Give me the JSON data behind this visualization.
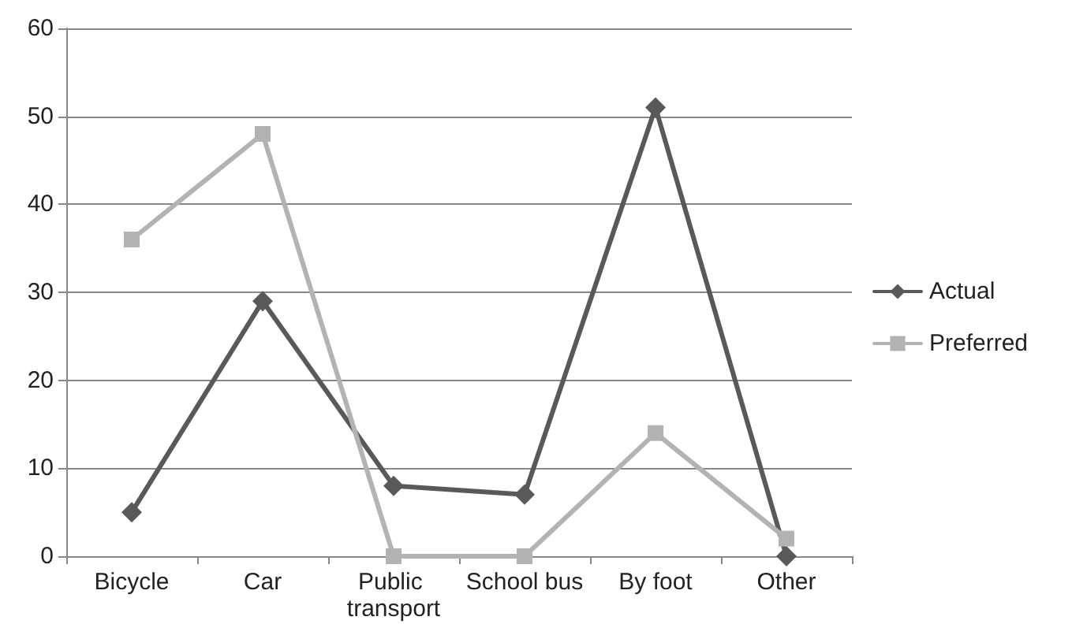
{
  "chart_data": {
    "type": "line",
    "categories": [
      "Bicycle",
      "Car",
      "Public transport",
      "School bus",
      "By foot",
      "Other"
    ],
    "series": [
      {
        "name": "Actual",
        "color": "#595959",
        "marker": "diamond",
        "values": [
          5,
          29,
          8,
          7,
          51,
          0
        ]
      },
      {
        "name": "Preferred",
        "color": "#b3b3b3",
        "marker": "square",
        "values": [
          36,
          48,
          0,
          0,
          14,
          2
        ]
      }
    ],
    "ylim": [
      0,
      60
    ],
    "yticks": [
      0,
      10,
      20,
      30,
      40,
      50,
      60
    ],
    "grid": "y",
    "legend": "right",
    "line_style": "solid"
  }
}
